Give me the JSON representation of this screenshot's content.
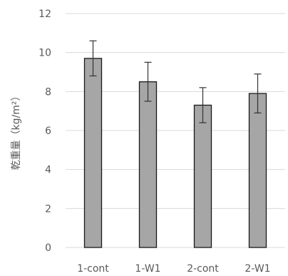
{
  "chart_data": {
    "type": "bar",
    "title": "",
    "xlabel": "",
    "ylabel": "乾重量（kg/m²）",
    "categories": [
      "1-cont",
      "1-W1",
      "2-cont",
      "2-W1"
    ],
    "values": [
      9.7,
      8.5,
      7.3,
      7.9
    ],
    "error_bars": [
      0.9,
      1.0,
      0.9,
      1.0
    ],
    "ylim": [
      0,
      12
    ],
    "y_ticks": [
      0,
      2,
      4,
      6,
      8,
      10,
      12
    ],
    "grid": true,
    "legend": "none",
    "colors": {
      "bar_fill": "#a6a6a6",
      "bar_stroke": "#1a1a1a",
      "grid": "#d9d9d9",
      "text": "#595959",
      "error_bar": "#333333"
    }
  }
}
